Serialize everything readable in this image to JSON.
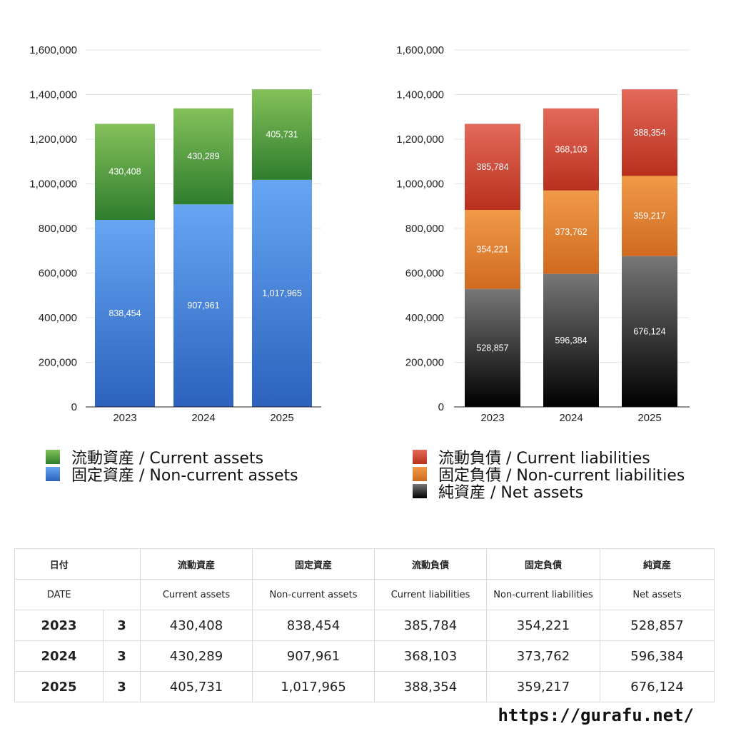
{
  "chart_data": [
    {
      "type": "bar",
      "stacked": true,
      "categories": [
        "2023",
        "2024",
        "2025"
      ],
      "ylim": [
        0,
        1600000
      ],
      "yticks": [
        "0",
        "200,000",
        "400,000",
        "600,000",
        "800,000",
        "1,000,000",
        "1,200,000",
        "1,400,000",
        "1,600,000"
      ],
      "ytick_values": [
        0,
        200000,
        400000,
        600000,
        800000,
        1000000,
        1200000,
        1400000,
        1600000
      ],
      "grid": true,
      "legend_position": "bottom",
      "series": [
        {
          "name": "固定資産 / Non-current assets",
          "values": [
            838454,
            907961,
            1017965
          ],
          "labels": [
            "838,454",
            "907,961",
            "1,017,965"
          ],
          "color_top": "#66a6f3",
          "color_bottom": "#2c62bd"
        },
        {
          "name": "流動資産 / Current assets",
          "values": [
            430408,
            430289,
            405731
          ],
          "labels": [
            "430,408",
            "430,289",
            "405,731"
          ],
          "color_top": "#84c15a",
          "color_bottom": "#2f7d2e"
        }
      ],
      "legend_order": [
        1,
        0
      ]
    },
    {
      "type": "bar",
      "stacked": true,
      "categories": [
        "2023",
        "2024",
        "2025"
      ],
      "ylim": [
        0,
        1600000
      ],
      "yticks": [
        "0",
        "200,000",
        "400,000",
        "600,000",
        "800,000",
        "1,000,000",
        "1,200,000",
        "1,400,000",
        "1,600,000"
      ],
      "ytick_values": [
        0,
        200000,
        400000,
        600000,
        800000,
        1000000,
        1200000,
        1400000,
        1600000
      ],
      "grid": true,
      "legend_position": "bottom",
      "series": [
        {
          "name": "純資産 / Net assets",
          "values": [
            528857,
            596384,
            676124
          ],
          "labels": [
            "528,857",
            "596,384",
            "676,124"
          ],
          "color_top": "#777777",
          "color_bottom": "#000000"
        },
        {
          "name": "固定負債 / Non-current liabilities",
          "values": [
            354221,
            373762,
            359217
          ],
          "labels": [
            "354,221",
            "373,762",
            "359,217"
          ],
          "color_top": "#f09a48",
          "color_bottom": "#d06a20"
        },
        {
          "name": "流動負債 / Current liabilities",
          "values": [
            385784,
            368103,
            388354
          ],
          "labels": [
            "385,784",
            "368,103",
            "388,354"
          ],
          "color_top": "#e36a5a",
          "color_bottom": "#b9301d"
        }
      ],
      "legend_order": [
        2,
        1,
        0
      ]
    }
  ],
  "table": {
    "header_jp": [
      "日付",
      "流動資産",
      "固定資産",
      "流動負債",
      "固定負債",
      "純資産"
    ],
    "header_en": [
      "DATE",
      "Current assets",
      "Non-current assets",
      "Current liabilities",
      "Non-current liabilities",
      "Net assets"
    ],
    "rows": [
      {
        "year": "2023",
        "month": "3",
        "values": [
          "430,408",
          "838,454",
          "385,784",
          "354,221",
          "528,857"
        ]
      },
      {
        "year": "2024",
        "month": "3",
        "values": [
          "430,289",
          "907,961",
          "368,103",
          "373,762",
          "596,384"
        ]
      },
      {
        "year": "2025",
        "month": "3",
        "values": [
          "405,731",
          "1,017,965",
          "388,354",
          "359,217",
          "676,124"
        ]
      }
    ]
  },
  "footer": {
    "url": "https://gurafu.net/"
  }
}
